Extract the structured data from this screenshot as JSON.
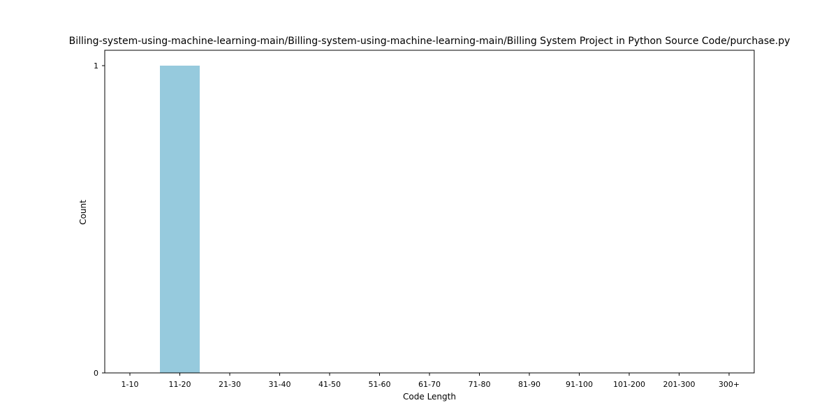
{
  "chart_data": {
    "type": "bar",
    "title": "Billing-system-using-machine-learning-main/Billing-system-using-machine-learning-main/Billing System Project in Python Source Code/purchase.py",
    "xlabel": "Code Length",
    "ylabel": "Count",
    "categories": [
      "1-10",
      "11-20",
      "21-30",
      "31-40",
      "41-50",
      "51-60",
      "61-70",
      "71-80",
      "81-90",
      "91-100",
      "101-200",
      "201-300",
      "300+"
    ],
    "values": [
      0,
      1,
      0,
      0,
      0,
      0,
      0,
      0,
      0,
      0,
      0,
      0,
      0
    ],
    "ylim": [
      0,
      1
    ],
    "yticks": [
      "0",
      "1"
    ],
    "bar_color": "#96cadd",
    "grid": false,
    "legend": "none"
  }
}
